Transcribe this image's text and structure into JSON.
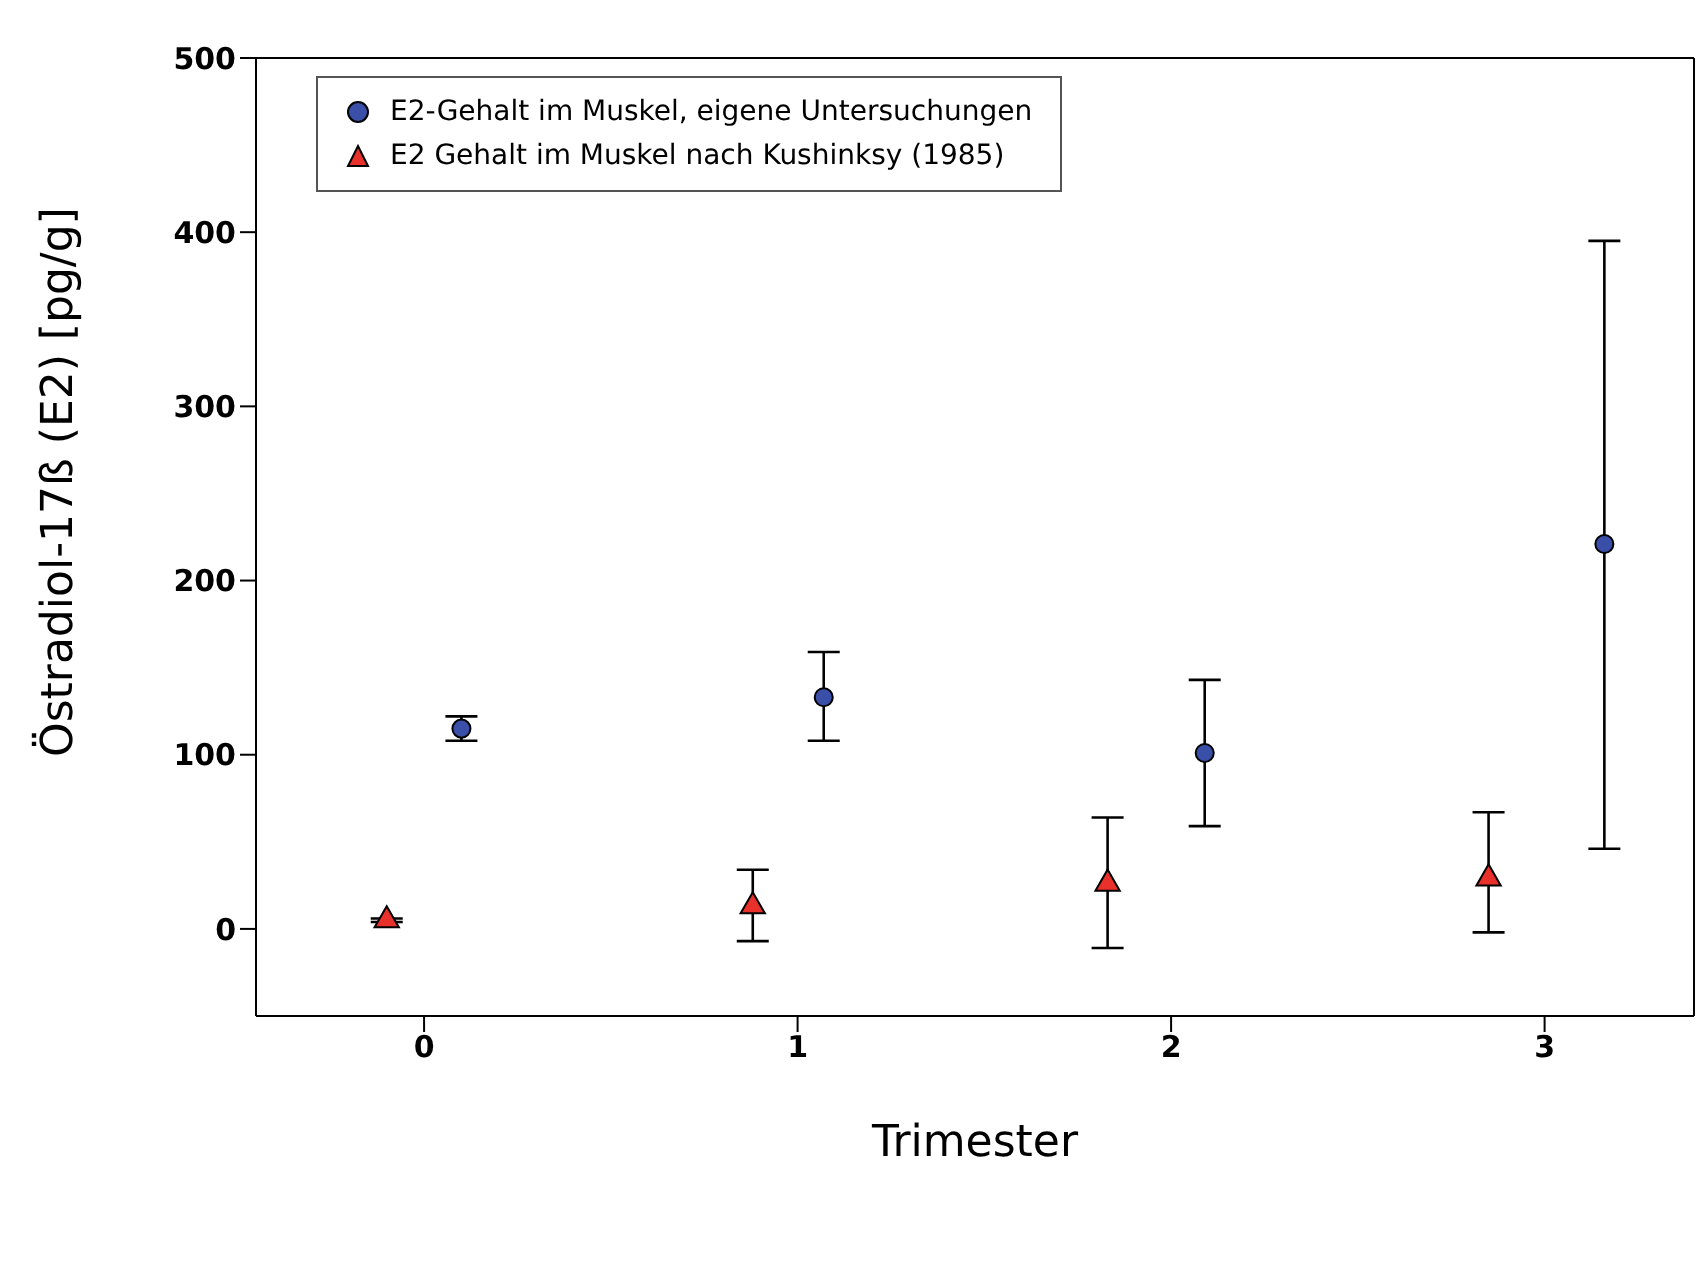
{
  "chart_data": {
    "type": "scatter",
    "xlabel": "Trimester",
    "ylabel": "Östradiol-17ß (E2) [pg/g]",
    "xlim": [
      -0.45,
      3.4
    ],
    "xticks": [
      0,
      1,
      2,
      3
    ],
    "ylim": [
      -50,
      500
    ],
    "yticks": [
      0,
      100,
      200,
      300,
      400,
      500
    ],
    "legend": "top left",
    "series": [
      {
        "name": "E2-Gehalt im Muskel, eigene Untersuchungen",
        "color": "#3a4fa8",
        "marker": "circle",
        "x": [
          0.1,
          1.07,
          2.09,
          3.16
        ],
        "values": [
          115,
          133,
          101,
          221
        ],
        "errors": [
          [
            108,
            122
          ],
          [
            108,
            159
          ],
          [
            59,
            143
          ],
          [
            46,
            395
          ]
        ]
      },
      {
        "name": "E2 Gehalt im Muskel nach Kushinksy (1985)",
        "color": "#e8312a",
        "marker": "triangle",
        "x": [
          -0.1,
          0.88,
          1.83,
          2.85
        ],
        "values": [
          5,
          13,
          26,
          29
        ],
        "errors": [
          [
            4,
            6
          ],
          [
            -7,
            34
          ],
          [
            -11,
            64
          ],
          [
            -2,
            67
          ]
        ]
      }
    ]
  }
}
